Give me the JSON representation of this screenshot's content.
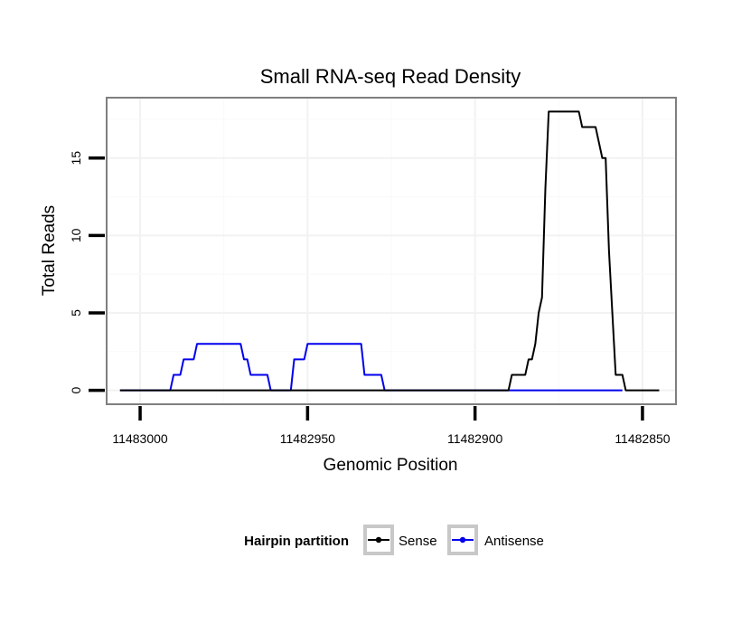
{
  "chart_data": {
    "type": "line",
    "title": "Small RNA-seq Read Density",
    "xlabel": "Genomic Position",
    "ylabel": "Total Reads",
    "x_reversed": true,
    "xlim": [
      11483010,
      11482840
    ],
    "ylim": [
      -0.9,
      18.9
    ],
    "xticks": [
      11483000,
      11482950,
      11482900,
      11482850
    ],
    "yticks": [
      0,
      5,
      10,
      15
    ],
    "grid": true,
    "legend": {
      "title": "Hairpin partition",
      "position": "bottom",
      "entries": [
        {
          "name": "Sense",
          "color": "#000000"
        },
        {
          "name": "Antisense",
          "color": "#0000ee"
        }
      ]
    },
    "series": [
      {
        "name": "Sense",
        "color": "#000000",
        "points": [
          [
            11483006,
            0
          ],
          [
            11482890,
            0
          ],
          [
            11482889,
            1
          ],
          [
            11482885,
            1
          ],
          [
            11482884,
            2
          ],
          [
            11482883,
            2
          ],
          [
            11482882,
            3
          ],
          [
            11482881,
            5
          ],
          [
            11482880,
            6
          ],
          [
            11482879,
            13
          ],
          [
            11482878,
            18
          ],
          [
            11482869,
            18
          ],
          [
            11482868,
            17
          ],
          [
            11482864,
            17
          ],
          [
            11482862,
            15
          ],
          [
            11482861,
            15
          ],
          [
            11482860,
            9
          ],
          [
            11482858,
            1
          ],
          [
            11482856,
            1
          ],
          [
            11482855,
            0
          ],
          [
            11482845,
            0
          ]
        ]
      },
      {
        "name": "Antisense",
        "color": "#0000ee",
        "points": [
          [
            11483006,
            0
          ],
          [
            11482991,
            0
          ],
          [
            11482990,
            1
          ],
          [
            11482988,
            1
          ],
          [
            11482987,
            2
          ],
          [
            11482984,
            2
          ],
          [
            11482983,
            3
          ],
          [
            11482970,
            3
          ],
          [
            11482969,
            2
          ],
          [
            11482968,
            2
          ],
          [
            11482967,
            1
          ],
          [
            11482962,
            1
          ],
          [
            11482961,
            0
          ],
          [
            11482955,
            0
          ],
          [
            11482954,
            2
          ],
          [
            11482951,
            2
          ],
          [
            11482950,
            3
          ],
          [
            11482934,
            3
          ],
          [
            11482933,
            1
          ],
          [
            11482928,
            1
          ],
          [
            11482927,
            0
          ],
          [
            11482856,
            0
          ]
        ]
      }
    ]
  }
}
